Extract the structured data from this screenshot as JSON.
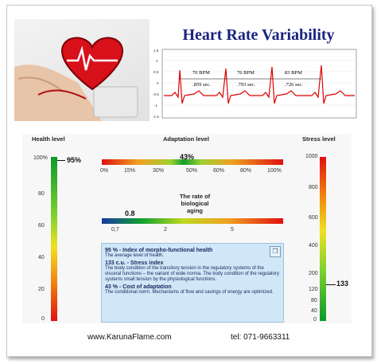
{
  "header": {
    "title": "Heart Rate Variability"
  },
  "ecg": {
    "y_ticks": [
      "1.5",
      "1",
      "0.5",
      "0",
      "-0.5",
      "-1",
      "-1.5"
    ],
    "intervals": [
      {
        "bpm": "70 BPM",
        "sec": ".859 sec."
      },
      {
        "bpm": "76 BPM",
        "sec": ".793 sec."
      },
      {
        "bpm": "83 BPM",
        "sec": ".726 sec."
      }
    ]
  },
  "health": {
    "label": "Health level",
    "value_label": "95%",
    "value": 95,
    "ticks": [
      "100%",
      "80",
      "60",
      "40",
      "20",
      "0"
    ]
  },
  "adaptation": {
    "label": "Adaptation level",
    "value_label": "43%",
    "value": 43,
    "ticks": [
      "0%",
      "15%",
      "30%",
      "50%",
      "60%",
      "80%",
      "100%"
    ]
  },
  "biological": {
    "title_lines": [
      "The rate of",
      "biological",
      "aging"
    ],
    "value_label": "0.8",
    "value": 0.8,
    "ticks": [
      "0,7",
      "2",
      "5"
    ]
  },
  "stress": {
    "label": "Stress level",
    "value_label": "133",
    "value": 133,
    "ticks": [
      "1000",
      "800",
      "600",
      "400",
      "200",
      "120",
      "80",
      "40",
      "0"
    ]
  },
  "info": {
    "items": [
      {
        "title": "95 % - Index of morpho-functional health",
        "desc": "The average level of health."
      },
      {
        "title": "133 c.u. - Stress index",
        "desc": "The body condition of the transitory tension in the regulatory systems of the visceral functions – the variant of wide norma. The body condition of the regulatory systems small tension by the physiological functions."
      },
      {
        "title": "43 %  - Cost of adaptation",
        "desc": "The conditional norm. Mechanisms of flow and savings of energy are optimized."
      }
    ]
  },
  "footer": {
    "website": "www.KarunaFlame.com",
    "phone": "tel: 071-9663311"
  },
  "colors": {
    "title": "#1a237e",
    "info_bg": "#cfe7f7",
    "ecg": "#e00000"
  }
}
